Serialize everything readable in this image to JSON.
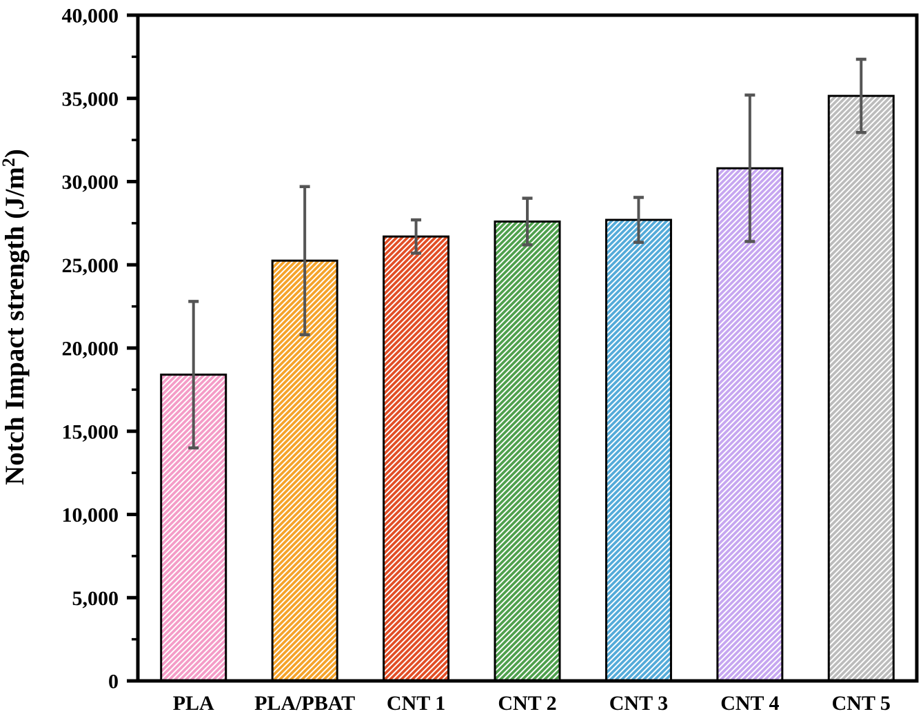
{
  "chart_data": {
    "type": "bar",
    "title": "",
    "ylabel": "Notch Impact strength (J/m²)",
    "ylabel_prefix": "Notch Impact strength (J/m",
    "ylabel_sup": "2",
    "ylabel_suffix": ")",
    "xlabel": "",
    "categories": [
      "PLA",
      "PLA/PBAT",
      "CNT 1",
      "CNT 2",
      "CNT 3",
      "CNT 4",
      "CNT 5"
    ],
    "values": [
      18400,
      25250,
      26700,
      27600,
      27700,
      30800,
      35150
    ],
    "error_bars": [
      4400,
      4450,
      1000,
      1400,
      1350,
      4400,
      2200
    ],
    "ylim": [
      0,
      40000
    ],
    "ytick_step": 5000,
    "yminor_step": 2500,
    "ytick_labels": [
      "0",
      "5,000",
      "10,000",
      "15,000",
      "20,000",
      "25,000",
      "30,000",
      "35,000",
      "40,000"
    ],
    "grid": "off",
    "legend": "none",
    "hatch_style": "diagonal-up",
    "bar_colors": [
      "#F49CC7",
      "#F5A32A",
      "#E24E26",
      "#4FA04D",
      "#54ABD9",
      "#C6A6F0",
      "#BCBCBC"
    ],
    "error_bar_color": "#555555",
    "bar_outline_color": "#000000"
  }
}
